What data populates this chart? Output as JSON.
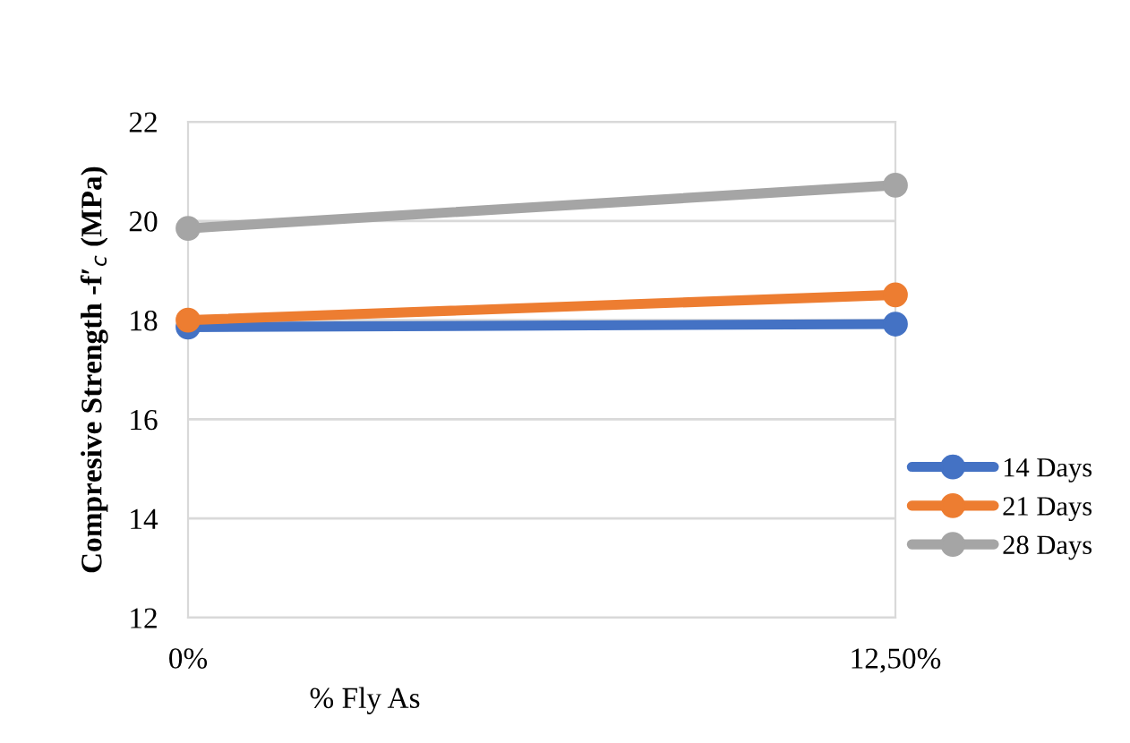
{
  "chart_data": {
    "type": "line",
    "xlabel": "% Fly As",
    "ylabel": "Compresive Strength -f′$_{c}$ (MPa)",
    "x": [
      0,
      12.5
    ],
    "xlim": [
      0,
      12.5
    ],
    "xticks": [
      {
        "value": 0,
        "label": "0%"
      },
      {
        "value": 12.5,
        "label": "12,50%"
      }
    ],
    "series": [
      {
        "name": "14 Days",
        "color": "#4472c4",
        "values": [
          17.86,
          17.92
        ]
      },
      {
        "name": "21 Days",
        "color": "#ed7d31",
        "values": [
          18.0,
          18.51
        ]
      },
      {
        "name": "28 Days",
        "color": "#a5a5a5",
        "values": [
          19.85,
          20.72
        ]
      }
    ],
    "ylim": [
      12,
      22
    ],
    "yticks": [
      12,
      14,
      16,
      18,
      20,
      22
    ],
    "grid": "y",
    "legend": "right",
    "marker": "circle",
    "line_style": "solid"
  }
}
